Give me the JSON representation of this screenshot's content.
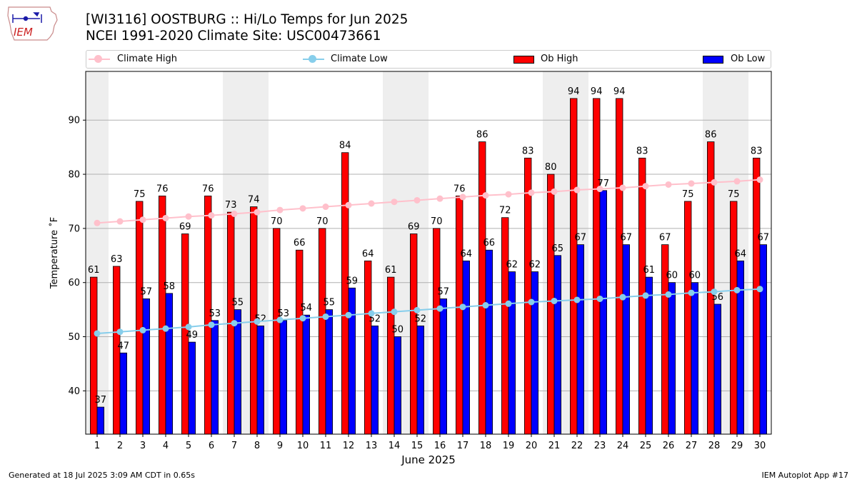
{
  "header": {
    "title_line1": "[WI3116] OOSTBURG :: Hi/Lo Temps for Jun 2025",
    "title_line2": "NCEI 1991-2020 Climate Site: USC00473661"
  },
  "logo": {
    "text": "IEM",
    "icon": "iem-iowa-logo"
  },
  "legend": {
    "items": [
      {
        "label": "Climate High",
        "color": "#ffc0cb",
        "marker": "line-dot"
      },
      {
        "label": "Climate Low",
        "color": "#87ceeb",
        "marker": "line-dot"
      },
      {
        "label": "Ob High",
        "color": "#ff0000",
        "marker": "box"
      },
      {
        "label": "Ob Low",
        "color": "#0000ff",
        "marker": "box"
      }
    ]
  },
  "footer": {
    "left": "Generated at 18 Jul 2025 3:09 AM CDT in 0.65s",
    "right": "IEM Autoplot App #17"
  },
  "chart_data": {
    "type": "bar",
    "xlabel": "June 2025",
    "ylabel": "Temperature ˚F",
    "ylim": [
      32,
      99
    ],
    "yticks": [
      40,
      50,
      60,
      70,
      80,
      90
    ],
    "grid": "horizontal",
    "weekend_shading": [
      1,
      7,
      8,
      14,
      15,
      21,
      22,
      28,
      29
    ],
    "shade_color": "#eeeeee",
    "categories": [
      "1",
      "2",
      "3",
      "4",
      "5",
      "6",
      "7",
      "8",
      "9",
      "10",
      "11",
      "12",
      "13",
      "14",
      "15",
      "16",
      "17",
      "18",
      "19",
      "20",
      "21",
      "22",
      "23",
      "24",
      "25",
      "26",
      "27",
      "28",
      "29",
      "30"
    ],
    "series": [
      {
        "name": "Ob High",
        "kind": "bar",
        "color": "#ff0000",
        "values": [
          61,
          63,
          75,
          76,
          69,
          76,
          73,
          74,
          70,
          66,
          70,
          84,
          64,
          61,
          69,
          70,
          76,
          86,
          72,
          83,
          80,
          94,
          94,
          94,
          83,
          67,
          75,
          86,
          75,
          83
        ]
      },
      {
        "name": "Ob Low",
        "kind": "bar",
        "color": "#0000ff",
        "values": [
          37,
          47,
          57,
          58,
          49,
          53,
          55,
          52,
          53,
          54,
          55,
          59,
          52,
          50,
          52,
          57,
          64,
          66,
          62,
          62,
          65,
          67,
          77,
          67,
          61,
          60,
          60,
          56,
          64,
          67
        ]
      },
      {
        "name": "Climate High",
        "kind": "line",
        "color": "#ffc0cb",
        "values": [
          71.0,
          71.3,
          71.6,
          71.9,
          72.2,
          72.4,
          72.7,
          73.0,
          73.4,
          73.7,
          74.0,
          74.3,
          74.6,
          74.9,
          75.2,
          75.5,
          75.8,
          76.1,
          76.3,
          76.6,
          76.8,
          77.1,
          77.3,
          77.5,
          77.8,
          78.1,
          78.3,
          78.5,
          78.7,
          79.0
        ]
      },
      {
        "name": "Climate Low",
        "kind": "line",
        "color": "#87ceeb",
        "values": [
          50.6,
          50.9,
          51.2,
          51.5,
          51.8,
          52.2,
          52.5,
          52.8,
          53.1,
          53.4,
          53.7,
          54.0,
          54.3,
          54.6,
          54.9,
          55.2,
          55.5,
          55.8,
          56.1,
          56.4,
          56.6,
          56.8,
          57.0,
          57.3,
          57.6,
          57.8,
          58.1,
          58.3,
          58.6,
          58.8
        ]
      }
    ]
  }
}
